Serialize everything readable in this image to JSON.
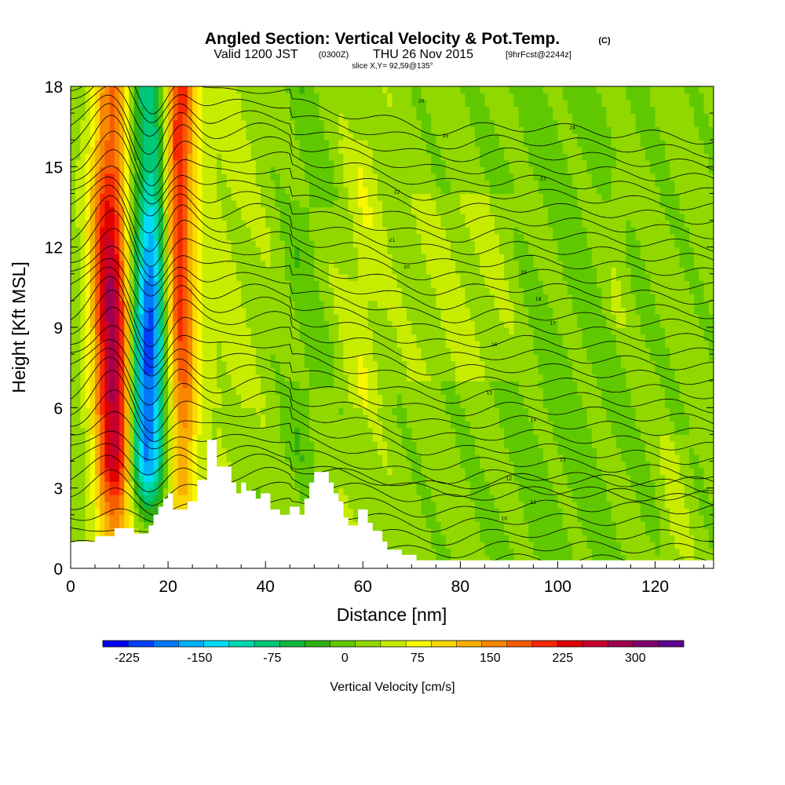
{
  "header": {
    "title": "Angled Section: Vertical Velocity & Pot.Temp.",
    "title_suffix": "(C)",
    "valid_prefix": "Valid 1200 JST",
    "valid_utc": "(0300Z)",
    "valid_date": "THU 26 Nov 2015",
    "forecast": "[9hrFcst@2244z]",
    "slice": "slice X,Y= 92,59@135°"
  },
  "chart_data": {
    "type": "heatmap",
    "xlabel": "Distance [nm]",
    "ylabel": "Height [Kft MSL]",
    "xlim": [
      0,
      132
    ],
    "ylim": [
      0,
      18
    ],
    "x_ticks": [
      0,
      20,
      40,
      60,
      80,
      100,
      120
    ],
    "y_ticks": [
      0,
      3,
      6,
      9,
      12,
      15,
      18
    ],
    "colorbar": {
      "label": "Vertical Velocity [cm/s]",
      "tick_values": [
        -225,
        -150,
        -75,
        0,
        75,
        150,
        225,
        300
      ],
      "tick_labels": [
        "-225",
        "-150",
        "-75",
        "0",
        "75",
        "150",
        "225",
        "300"
      ],
      "range": [
        -250,
        350
      ],
      "colors": [
        "#0000ee",
        "#0040f8",
        "#0078f8",
        "#00b0f8",
        "#00dcf8",
        "#00d8b0",
        "#00c878",
        "#10b840",
        "#30b010",
        "#60c800",
        "#90d800",
        "#c8ec00",
        "#f8f800",
        "#f8d800",
        "#f8b000",
        "#f88800",
        "#f85c00",
        "#f82800",
        "#e00000",
        "#c8002c",
        "#a00050",
        "#800070",
        "#600090"
      ]
    },
    "terrain_profile": {
      "x": [
        0,
        5,
        5,
        9,
        9,
        13,
        13,
        16,
        16,
        17,
        17,
        18,
        18,
        19,
        19,
        20,
        20,
        21,
        21,
        24,
        24,
        26,
        26,
        28,
        28,
        30,
        30,
        33,
        33,
        34,
        34,
        35,
        35,
        36,
        36,
        38,
        38,
        39,
        39,
        41,
        41,
        43,
        43,
        45,
        45,
        47,
        47,
        48,
        48,
        49,
        49,
        50,
        50,
        53,
        53,
        54,
        54,
        55,
        55,
        56,
        56,
        57,
        57,
        59,
        59,
        61,
        61,
        62,
        62,
        64,
        64,
        65,
        65,
        68,
        68,
        71,
        71,
        132
      ],
      "y": [
        1.0,
        1.0,
        1.2,
        1.2,
        1.5,
        1.5,
        1.3,
        1.3,
        1.6,
        1.6,
        2.0,
        2.0,
        2.3,
        2.3,
        2.6,
        2.6,
        2.8,
        2.8,
        2.2,
        2.2,
        2.5,
        2.5,
        3.3,
        3.3,
        4.8,
        4.8,
        3.8,
        3.8,
        3.2,
        3.2,
        2.8,
        2.8,
        3.2,
        3.2,
        2.9,
        2.9,
        2.6,
        2.6,
        2.8,
        2.8,
        2.2,
        2.2,
        2.0,
        2.0,
        2.3,
        2.3,
        2.0,
        2.0,
        2.6,
        2.6,
        3.2,
        3.2,
        3.6,
        3.6,
        3.2,
        3.2,
        2.8,
        2.8,
        2.5,
        2.5,
        1.9,
        1.9,
        1.6,
        1.6,
        2.2,
        2.2,
        1.7,
        1.7,
        1.4,
        1.4,
        1.0,
        1.0,
        0.7,
        0.7,
        0.5,
        0.5,
        0.3,
        0.3
      ]
    },
    "contour_labels": [
      "26",
      "25",
      "24",
      "23",
      "22",
      "21",
      "20",
      "19",
      "18",
      "17",
      "16",
      "15",
      "14",
      "13",
      "12",
      "11",
      "10"
    ]
  }
}
